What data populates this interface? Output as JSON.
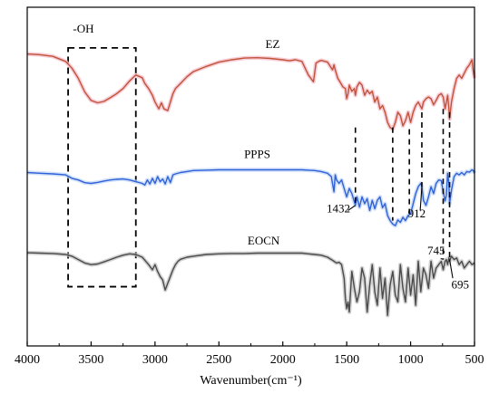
{
  "chart_data": {
    "type": "line",
    "title": "",
    "xlabel": "Wavenumber(cm⁻¹)",
    "ylabel": "",
    "xlim": [
      4000,
      500
    ],
    "x_reversed": true,
    "x_ticks": [
      4000,
      3500,
      3000,
      2500,
      2000,
      1500,
      1000,
      500
    ],
    "x_tick_labels": [
      "4000",
      "3500",
      "3000",
      "2500",
      "2000",
      "1500",
      "1000",
      "500"
    ],
    "y_ticks_shown": false,
    "legend": "none",
    "series": [
      {
        "name": "EZ",
        "color": "#c0533a",
        "glow": "#f4b8c4",
        "x": [
          4000,
          3900,
          3800,
          3700,
          3650,
          3600,
          3550,
          3500,
          3450,
          3400,
          3350,
          3300,
          3250,
          3200,
          3150,
          3100,
          3080,
          3050,
          3020,
          3000,
          2970,
          2950,
          2930,
          2900,
          2880,
          2860,
          2840,
          2800,
          2750,
          2700,
          2600,
          2500,
          2400,
          2300,
          2200,
          2100,
          2000,
          1950,
          1900,
          1850,
          1800,
          1760,
          1740,
          1720,
          1700,
          1650,
          1610,
          1600,
          1590,
          1570,
          1550,
          1530,
          1510,
          1500,
          1490,
          1480,
          1460,
          1440,
          1432,
          1420,
          1400,
          1380,
          1360,
          1340,
          1320,
          1300,
          1280,
          1260,
          1240,
          1220,
          1200,
          1180,
          1160,
          1140,
          1120,
          1100,
          1080,
          1060,
          1040,
          1020,
          1000,
          980,
          960,
          940,
          912,
          900,
          880,
          860,
          840,
          820,
          800,
          780,
          760,
          745,
          730,
          720,
          710,
          700,
          695,
          680,
          660,
          640,
          620,
          600,
          580,
          560,
          540,
          520,
          510,
          500
        ],
        "y": [
          0.862,
          0.86,
          0.855,
          0.84,
          0.82,
          0.79,
          0.75,
          0.725,
          0.718,
          0.722,
          0.733,
          0.745,
          0.76,
          0.782,
          0.8,
          0.792,
          0.775,
          0.76,
          0.74,
          0.72,
          0.7,
          0.718,
          0.7,
          0.695,
          0.72,
          0.745,
          0.76,
          0.775,
          0.795,
          0.81,
          0.825,
          0.838,
          0.845,
          0.85,
          0.851,
          0.849,
          0.845,
          0.842,
          0.845,
          0.84,
          0.8,
          0.78,
          0.835,
          0.84,
          0.843,
          0.838,
          0.815,
          0.83,
          0.815,
          0.79,
          0.778,
          0.765,
          0.76,
          0.73,
          0.745,
          0.77,
          0.752,
          0.76,
          0.74,
          0.765,
          0.778,
          0.77,
          0.74,
          0.755,
          0.745,
          0.752,
          0.72,
          0.735,
          0.7,
          0.71,
          0.69,
          0.66,
          0.645,
          0.64,
          0.66,
          0.69,
          0.68,
          0.65,
          0.665,
          0.69,
          0.66,
          0.69,
          0.71,
          0.72,
          0.7,
          0.72,
          0.73,
          0.735,
          0.73,
          0.712,
          0.725,
          0.74,
          0.745,
          0.735,
          0.7,
          0.72,
          0.74,
          0.7,
          0.67,
          0.72,
          0.76,
          0.79,
          0.8,
          0.79,
          0.805,
          0.82,
          0.83,
          0.845,
          0.812,
          0.79
        ]
      },
      {
        "name": "PPPS",
        "color": "#2f62d6",
        "glow": "#bcd2f8",
        "x": [
          4000,
          3900,
          3800,
          3700,
          3650,
          3600,
          3550,
          3500,
          3450,
          3400,
          3350,
          3300,
          3250,
          3200,
          3150,
          3100,
          3080,
          3060,
          3040,
          3020,
          3000,
          2980,
          2960,
          2940,
          2920,
          2900,
          2880,
          2860,
          2840,
          2800,
          2750,
          2700,
          2600,
          2500,
          2400,
          2300,
          2200,
          2100,
          2000,
          1900,
          1850,
          1800,
          1750,
          1700,
          1650,
          1620,
          1600,
          1590,
          1580,
          1560,
          1540,
          1520,
          1500,
          1480,
          1460,
          1440,
          1432,
          1420,
          1400,
          1380,
          1360,
          1340,
          1320,
          1300,
          1280,
          1260,
          1240,
          1220,
          1200,
          1180,
          1160,
          1140,
          1120,
          1100,
          1080,
          1060,
          1040,
          1020,
          1000,
          980,
          960,
          940,
          920,
          912,
          900,
          880,
          860,
          840,
          820,
          800,
          780,
          760,
          745,
          730,
          720,
          710,
          700,
          695,
          680,
          660,
          640,
          620,
          600,
          580,
          560,
          540,
          520,
          510,
          500
        ],
        "y": [
          0.512,
          0.51,
          0.508,
          0.505,
          0.495,
          0.49,
          0.482,
          0.48,
          0.483,
          0.487,
          0.49,
          0.492,
          0.493,
          0.49,
          0.485,
          0.48,
          0.475,
          0.49,
          0.478,
          0.495,
          0.48,
          0.5,
          0.485,
          0.493,
          0.478,
          0.5,
          0.482,
          0.505,
          0.508,
          0.512,
          0.515,
          0.518,
          0.519,
          0.52,
          0.52,
          0.52,
          0.52,
          0.52,
          0.52,
          0.52,
          0.52,
          0.519,
          0.518,
          0.515,
          0.51,
          0.5,
          0.455,
          0.505,
          0.49,
          0.48,
          0.49,
          0.465,
          0.44,
          0.465,
          0.45,
          0.425,
          0.415,
          0.44,
          0.41,
          0.44,
          0.42,
          0.435,
          0.4,
          0.43,
          0.405,
          0.43,
          0.44,
          0.408,
          0.42,
          0.385,
          0.37,
          0.36,
          0.355,
          0.372,
          0.365,
          0.38,
          0.37,
          0.385,
          0.39,
          0.42,
          0.45,
          0.47,
          0.48,
          0.47,
          0.43,
          0.415,
          0.44,
          0.47,
          0.45,
          0.48,
          0.49,
          0.488,
          0.455,
          0.428,
          0.445,
          0.51,
          0.48,
          0.42,
          0.46,
          0.5,
          0.51,
          0.505,
          0.512,
          0.505,
          0.515,
          0.513,
          0.52,
          0.518,
          0.51
        ]
      },
      {
        "name": "EOCN",
        "color": "#4a4a4a",
        "glow": "#bfbfbf",
        "x": [
          4000,
          3900,
          3800,
          3700,
          3650,
          3600,
          3550,
          3500,
          3450,
          3400,
          3350,
          3300,
          3250,
          3200,
          3150,
          3100,
          3050,
          3020,
          3000,
          2980,
          2960,
          2940,
          2920,
          2900,
          2880,
          2860,
          2840,
          2820,
          2800,
          2750,
          2700,
          2600,
          2500,
          2400,
          2300,
          2200,
          2100,
          2000,
          1900,
          1850,
          1800,
          1750,
          1700,
          1650,
          1620,
          1600,
          1580,
          1560,
          1540,
          1520,
          1510,
          1500,
          1490,
          1480,
          1470,
          1460,
          1440,
          1420,
          1400,
          1380,
          1360,
          1340,
          1320,
          1300,
          1280,
          1260,
          1240,
          1220,
          1200,
          1180,
          1160,
          1140,
          1120,
          1100,
          1080,
          1060,
          1040,
          1020,
          1000,
          980,
          960,
          940,
          920,
          900,
          880,
          860,
          840,
          820,
          800,
          780,
          760,
          745,
          730,
          720,
          710,
          700,
          695,
          680,
          660,
          640,
          620,
          600,
          580,
          560,
          540,
          520,
          500
        ],
        "y": [
          0.275,
          0.274,
          0.273,
          0.27,
          0.265,
          0.255,
          0.245,
          0.24,
          0.242,
          0.248,
          0.255,
          0.262,
          0.268,
          0.272,
          0.27,
          0.262,
          0.24,
          0.225,
          0.24,
          0.22,
          0.205,
          0.195,
          0.165,
          0.185,
          0.205,
          0.225,
          0.24,
          0.25,
          0.256,
          0.262,
          0.265,
          0.27,
          0.272,
          0.273,
          0.273,
          0.274,
          0.274,
          0.274,
          0.274,
          0.274,
          0.272,
          0.27,
          0.268,
          0.262,
          0.255,
          0.25,
          0.245,
          0.247,
          0.24,
          0.2,
          0.14,
          0.11,
          0.13,
          0.1,
          0.16,
          0.22,
          0.17,
          0.13,
          0.16,
          0.23,
          0.2,
          0.1,
          0.18,
          0.24,
          0.16,
          0.12,
          0.23,
          0.14,
          0.2,
          0.09,
          0.18,
          0.22,
          0.15,
          0.13,
          0.24,
          0.17,
          0.13,
          0.23,
          0.15,
          0.21,
          0.12,
          0.25,
          0.16,
          0.23,
          0.21,
          0.17,
          0.25,
          0.2,
          0.23,
          0.24,
          0.25,
          0.225,
          0.25,
          0.255,
          0.24,
          0.26,
          0.25,
          0.265,
          0.255,
          0.26,
          0.24,
          0.25,
          0.23,
          0.24,
          0.25,
          0.24,
          0.245
        ]
      }
    ],
    "series_labels": [
      {
        "text": "EZ",
        "x": 2080,
        "y": 0.88
      },
      {
        "text": "PPPS",
        "x": 2200,
        "y": 0.555
      },
      {
        "text": "EOCN",
        "x": 2150,
        "y": 0.3
      }
    ],
    "region_box": {
      "x_from": 3680,
      "x_to": 3150,
      "y_from": 0.175,
      "y_to": 0.88,
      "label": "-OH",
      "label_x": 3560,
      "label_y": 0.925
    },
    "vertical_markers": [
      {
        "x": 1432,
        "y_from": 0.415,
        "y_to": 0.645
      },
      {
        "x": 1140,
        "y_from": 0.37,
        "y_to": 0.645
      },
      {
        "x": 1010,
        "y_from": 0.39,
        "y_to": 0.64
      },
      {
        "x": 912,
        "y_from": 0.47,
        "y_to": 0.69
      },
      {
        "x": 745,
        "y_from": 0.255,
        "y_to": 0.7
      },
      {
        "x": 695,
        "y_from": 0.255,
        "y_to": 0.69
      }
    ],
    "peak_labels": [
      {
        "text": "1432",
        "text_x": 1565,
        "text_y": 0.395,
        "line_from": [
          1490,
          0.4
        ],
        "line_to": [
          1432,
          0.415
        ]
      },
      {
        "text": "912",
        "text_x": 952,
        "text_y": 0.38,
        "line_from": [
          925,
          0.4
        ],
        "line_to": [
          912,
          0.47
        ]
      },
      {
        "text": "745",
        "text_x": 800,
        "text_y": 0.27,
        "line_from": [
          765,
          0.258
        ],
        "line_to": [
          745,
          0.256
        ]
      },
      {
        "text": "695",
        "text_x": 612,
        "text_y": 0.17,
        "line_from": [
          670,
          0.2
        ],
        "line_to": [
          695,
          0.255
        ]
      }
    ]
  }
}
